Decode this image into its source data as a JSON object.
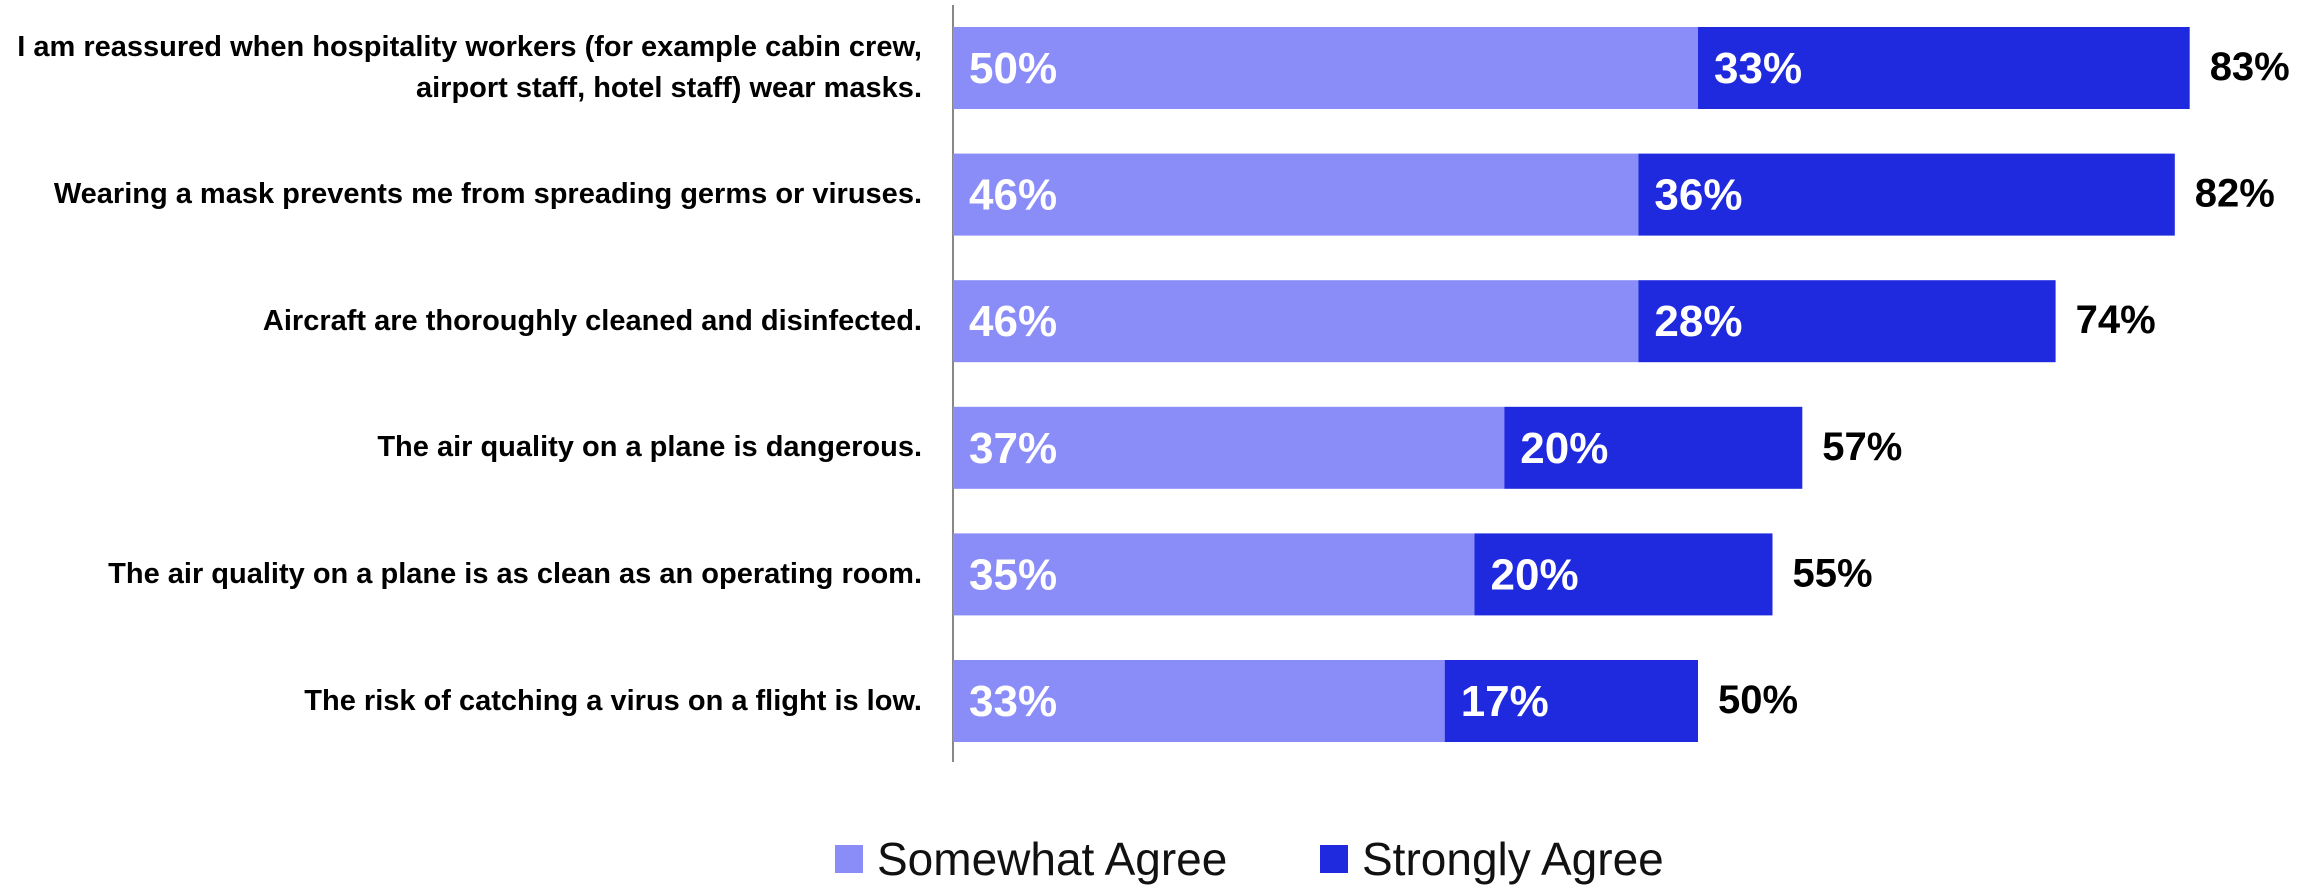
{
  "colors": {
    "somewhat": "#8a8cf8",
    "strongly": "#1f2ade",
    "axis": "#888888",
    "total_text": "#000000"
  },
  "chart_data": {
    "type": "bar",
    "orientation": "horizontal",
    "stacked": true,
    "categories": [
      "I am reassured when hospitality workers (for example cabin crew, airport staff, hotel staff) wear masks.",
      "Wearing a mask prevents me from spreading germs or viruses.",
      "Aircraft are thoroughly cleaned and disinfected.",
      "The air quality on a plane is dangerous.",
      "The air quality on a plane is as clean as an operating room.",
      "The risk of catching a virus on a flight is low."
    ],
    "series": [
      {
        "name": "Somewhat Agree",
        "values": [
          50,
          46,
          46,
          37,
          35,
          33
        ],
        "labels": [
          "50%",
          "46%",
          "46%",
          "37%",
          "35%",
          "33%"
        ]
      },
      {
        "name": "Strongly Agree",
        "values": [
          33,
          36,
          28,
          20,
          20,
          17
        ],
        "labels": [
          "33%",
          "36%",
          "28%",
          "20%",
          "20%",
          "17%"
        ]
      }
    ],
    "totals": [
      "83%",
      "82%",
      "74%",
      "57%",
      "55%",
      "50%"
    ],
    "xlim": [
      0,
      83
    ],
    "grid": false,
    "legend": "bottom-center"
  }
}
